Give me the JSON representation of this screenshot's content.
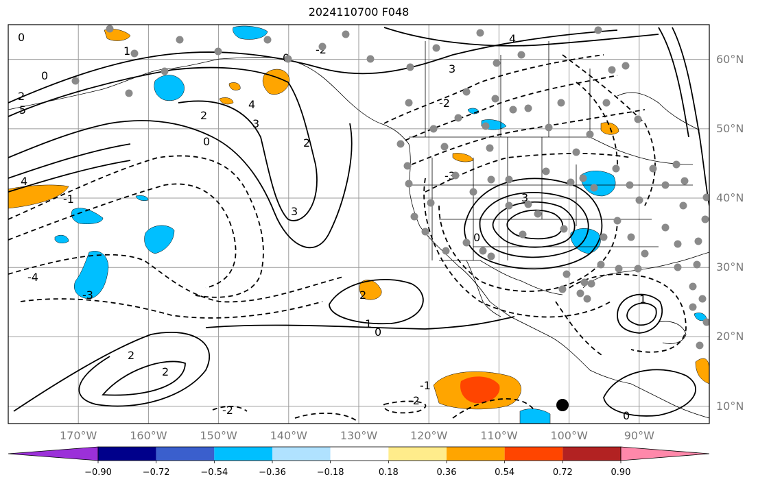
{
  "title": "2024110700 F048",
  "map": {
    "projection": "PlateCarree",
    "lon_range": [
      -180,
      -80
    ],
    "lat_range": [
      7.5,
      65
    ],
    "gridlines": true,
    "lon_labels": [
      "170°W",
      "160°W",
      "150°W",
      "140°W",
      "130°W",
      "120°W",
      "110°W",
      "100°W",
      "90°W"
    ],
    "lat_labels": [
      "60°N",
      "50°N",
      "40°N",
      "30°N",
      "20°N",
      "10°N"
    ],
    "contour_labels": [
      "0",
      "1",
      "2",
      "3",
      "4",
      "5",
      "-1",
      "-2",
      "-3",
      "-4"
    ]
  },
  "colorbar": {
    "extend": "both",
    "colors": [
      "#9b30d9",
      "#00008b",
      "#3a5fcd",
      "#00bfff",
      "#b0e2ff",
      "#ffffff",
      "#ffec8b",
      "#ffa500",
      "#ff4500",
      "#b22222",
      "#ff88aa"
    ],
    "ticks": [
      "−0.90",
      "−0.72",
      "−0.54",
      "−0.36",
      "−0.18",
      "0.18",
      "0.36",
      "0.54",
      "0.72",
      "0.90"
    ]
  },
  "markers": {
    "gray_stations": "gray filled circles",
    "black_marker": "black filled circle"
  }
}
